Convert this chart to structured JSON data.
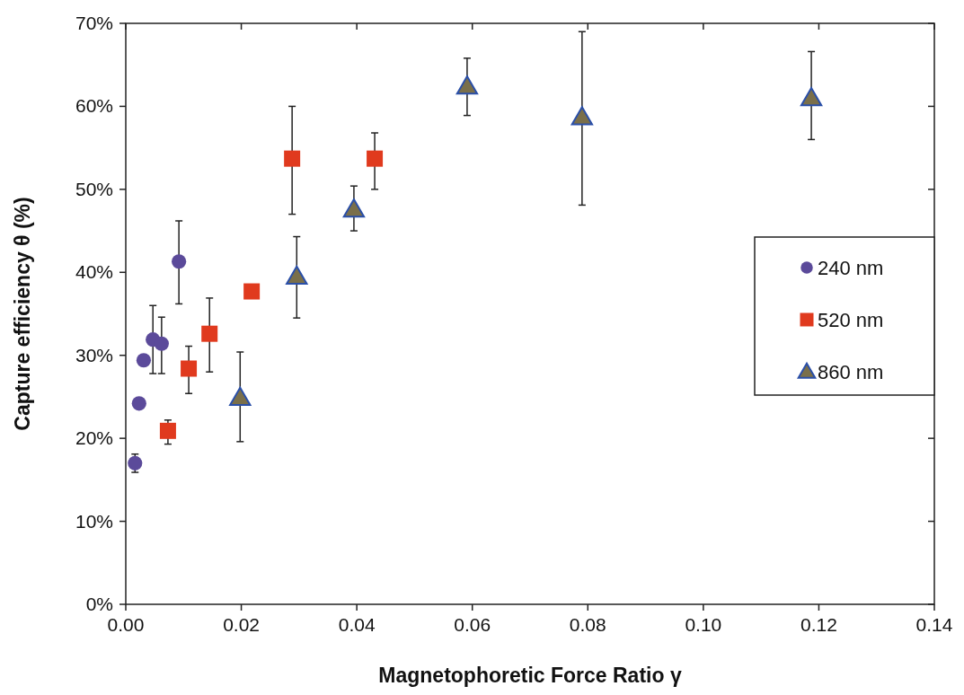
{
  "chart_data": {
    "type": "scatter",
    "xlabel": "Magnetophoretic Force Ratio γ",
    "ylabel": "Capture efficiency θ (%)",
    "xlim": [
      0,
      0.14
    ],
    "xticks": [
      {
        "value": 0,
        "label": "0.00"
      },
      {
        "value": 0.02,
        "label": "0.02"
      },
      {
        "value": 0.04,
        "label": "0.04"
      },
      {
        "value": 0.06,
        "label": "0.06"
      },
      {
        "value": 0.08,
        "label": "0.08"
      },
      {
        "value": 0.1,
        "label": "0.10"
      },
      {
        "value": 0.12,
        "label": "0.12"
      },
      {
        "value": 0.14,
        "label": "0.14"
      }
    ],
    "ylim": [
      0,
      70
    ],
    "yticks": [
      {
        "value": 0,
        "label": "0%"
      },
      {
        "value": 10,
        "label": "10%"
      },
      {
        "value": 20,
        "label": "20%"
      },
      {
        "value": 30,
        "label": "30%"
      },
      {
        "value": 40,
        "label": "40%"
      },
      {
        "value": 50,
        "label": "50%"
      },
      {
        "value": 60,
        "label": "60%"
      },
      {
        "value": 70,
        "label": "70%"
      }
    ],
    "grid": false,
    "legend": "right",
    "series": [
      {
        "name": "240 nm",
        "color": "#5b4a9a",
        "marker": "circle",
        "x": [
          0.0016,
          0.0023,
          0.0031,
          0.0047,
          0.0062,
          0.0092
        ],
        "values": [
          17.0,
          24.2,
          29.4,
          31.9,
          31.4,
          41.3
        ],
        "errors": [
          [
            15.9,
            18.1
          ],
          null,
          null,
          [
            27.8,
            36.0
          ],
          [
            27.8,
            34.6
          ],
          [
            36.2,
            46.2
          ]
        ]
      },
      {
        "name": "520 nm",
        "color": "#e03a1e",
        "marker": "square",
        "x": [
          0.0073,
          0.0109,
          0.0145,
          0.0218,
          0.0288,
          0.0431
        ],
        "values": [
          20.9,
          28.4,
          32.6,
          37.7,
          53.7,
          53.7
        ],
        "errors": [
          [
            19.3,
            22.2
          ],
          [
            25.4,
            31.1
          ],
          [
            28.0,
            36.9
          ],
          null,
          [
            47.0,
            60.0
          ],
          [
            50.0,
            56.8
          ]
        ]
      },
      {
        "name": "860 nm",
        "color": "#7a6f4a",
        "marker": "triangle",
        "x": [
          0.0198,
          0.0296,
          0.0395,
          0.0591,
          0.079,
          0.1187
        ],
        "values": [
          24.9,
          39.5,
          47.6,
          62.4,
          58.7,
          61.0
        ],
        "errors": [
          [
            19.6,
            30.4
          ],
          [
            34.5,
            44.3
          ],
          [
            45.0,
            50.4
          ],
          [
            58.9,
            65.8
          ],
          [
            48.1,
            69.0
          ],
          [
            56.0,
            66.6
          ]
        ]
      }
    ]
  }
}
